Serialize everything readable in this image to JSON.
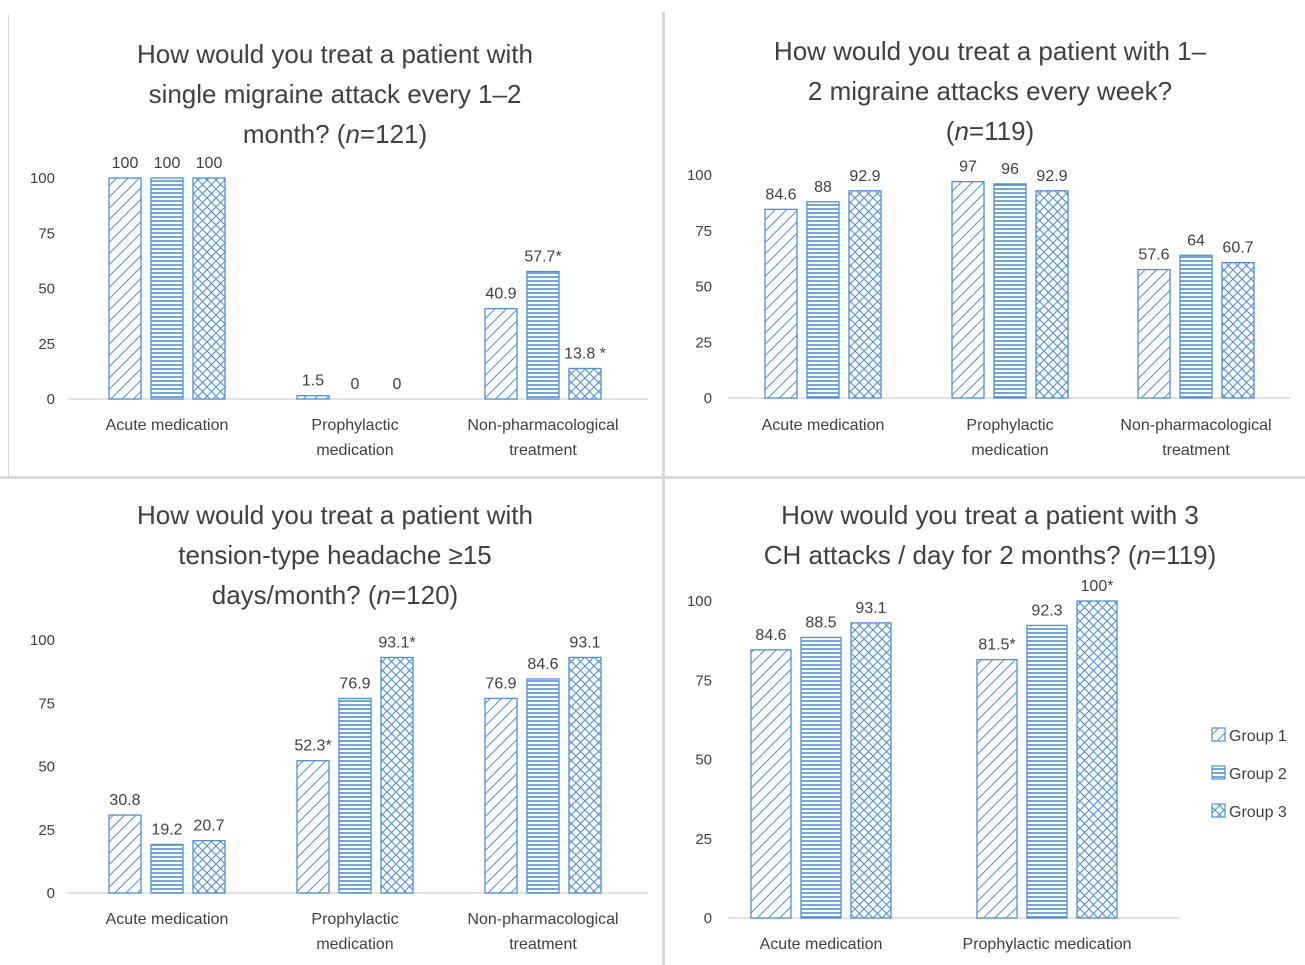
{
  "legend": [
    "Group 1",
    "Group 2",
    "Group 3"
  ],
  "colors": {
    "bar_stroke": "#4f8fd6",
    "hatch": "#4f8fd6",
    "axis": "#d9d9d9",
    "text": "#404040"
  },
  "chart_data": [
    {
      "type": "bar",
      "title_lines": [
        "How would you treat a patient with",
        "single migraine attack every 1–2",
        "month? (",
        "n",
        "=121)"
      ],
      "categories": [
        [
          "Acute medication"
        ],
        [
          "Prophylactic",
          "medication"
        ],
        [
          "Non-pharmacological",
          "treatment"
        ]
      ],
      "ylim": [
        0,
        100
      ],
      "yticks": [
        0,
        25,
        50,
        75,
        100
      ],
      "series": [
        {
          "name": "Group 1",
          "values": [
            100,
            1.5,
            40.9
          ],
          "labels": [
            "100",
            "1.5",
            "40.9"
          ]
        },
        {
          "name": "Group 2",
          "values": [
            100,
            0,
            57.7
          ],
          "labels": [
            "100",
            "0",
            "57.7*"
          ]
        },
        {
          "name": "Group 3",
          "values": [
            100,
            0,
            13.8
          ],
          "labels": [
            "100",
            "0",
            "13.8 *"
          ]
        }
      ]
    },
    {
      "type": "bar",
      "title_lines": [
        "How would you treat a patient with 1–",
        "2 migraine attacks every week?",
        "(",
        "n",
        "=119)"
      ],
      "categories": [
        [
          "Acute medication"
        ],
        [
          "Prophylactic",
          "medication"
        ],
        [
          "Non-pharmacological",
          "treatment"
        ]
      ],
      "ylim": [
        0,
        100
      ],
      "yticks": [
        0,
        25,
        50,
        75,
        100
      ],
      "series": [
        {
          "name": "Group 1",
          "values": [
            84.6,
            97,
            57.6
          ],
          "labels": [
            "84.6",
            "97",
            "57.6"
          ]
        },
        {
          "name": "Group 2",
          "values": [
            88,
            96,
            64
          ],
          "labels": [
            "88",
            "96",
            "64"
          ]
        },
        {
          "name": "Group 3",
          "values": [
            92.9,
            92.9,
            60.7
          ],
          "labels": [
            "92.9",
            "92.9",
            "60.7"
          ]
        }
      ]
    },
    {
      "type": "bar",
      "title_lines": [
        "How would you treat a patient with",
        "tension-type headache ≥15",
        "days/month? (",
        "n",
        "=120)"
      ],
      "categories": [
        [
          "Acute medication"
        ],
        [
          "Prophylactic",
          "medication"
        ],
        [
          "Non-pharmacological",
          "treatment"
        ]
      ],
      "ylim": [
        0,
        100
      ],
      "yticks": [
        0,
        25,
        50,
        75,
        100
      ],
      "series": [
        {
          "name": "Group 1",
          "values": [
            30.8,
            52.3,
            76.9
          ],
          "labels": [
            "30.8",
            "52.3*",
            "76.9"
          ]
        },
        {
          "name": "Group 2",
          "values": [
            19.2,
            76.9,
            84.6
          ],
          "labels": [
            "19.2",
            "76.9",
            "84.6"
          ]
        },
        {
          "name": "Group 3",
          "values": [
            20.7,
            93.1,
            93.1
          ],
          "labels": [
            "20.7",
            "93.1*",
            "93.1"
          ]
        }
      ]
    },
    {
      "type": "bar",
      "title_lines": [
        "How would you treat a patient with 3",
        "CH attacks / day for 2 months? (",
        "n",
        "=119)"
      ],
      "categories": [
        [
          "Acute medication"
        ],
        [
          "Prophylactic medication"
        ]
      ],
      "ylim": [
        0,
        100
      ],
      "yticks": [
        0,
        25,
        50,
        75,
        100
      ],
      "legend_position": "right",
      "series": [
        {
          "name": "Group 1",
          "values": [
            84.6,
            81.5
          ],
          "labels": [
            "84.6",
            "81.5*"
          ]
        },
        {
          "name": "Group 2",
          "values": [
            88.5,
            92.3
          ],
          "labels": [
            "88.5",
            "92.3"
          ]
        },
        {
          "name": "Group 3",
          "values": [
            93.1,
            100
          ],
          "labels": [
            "93.1",
            "100*"
          ]
        }
      ]
    }
  ]
}
